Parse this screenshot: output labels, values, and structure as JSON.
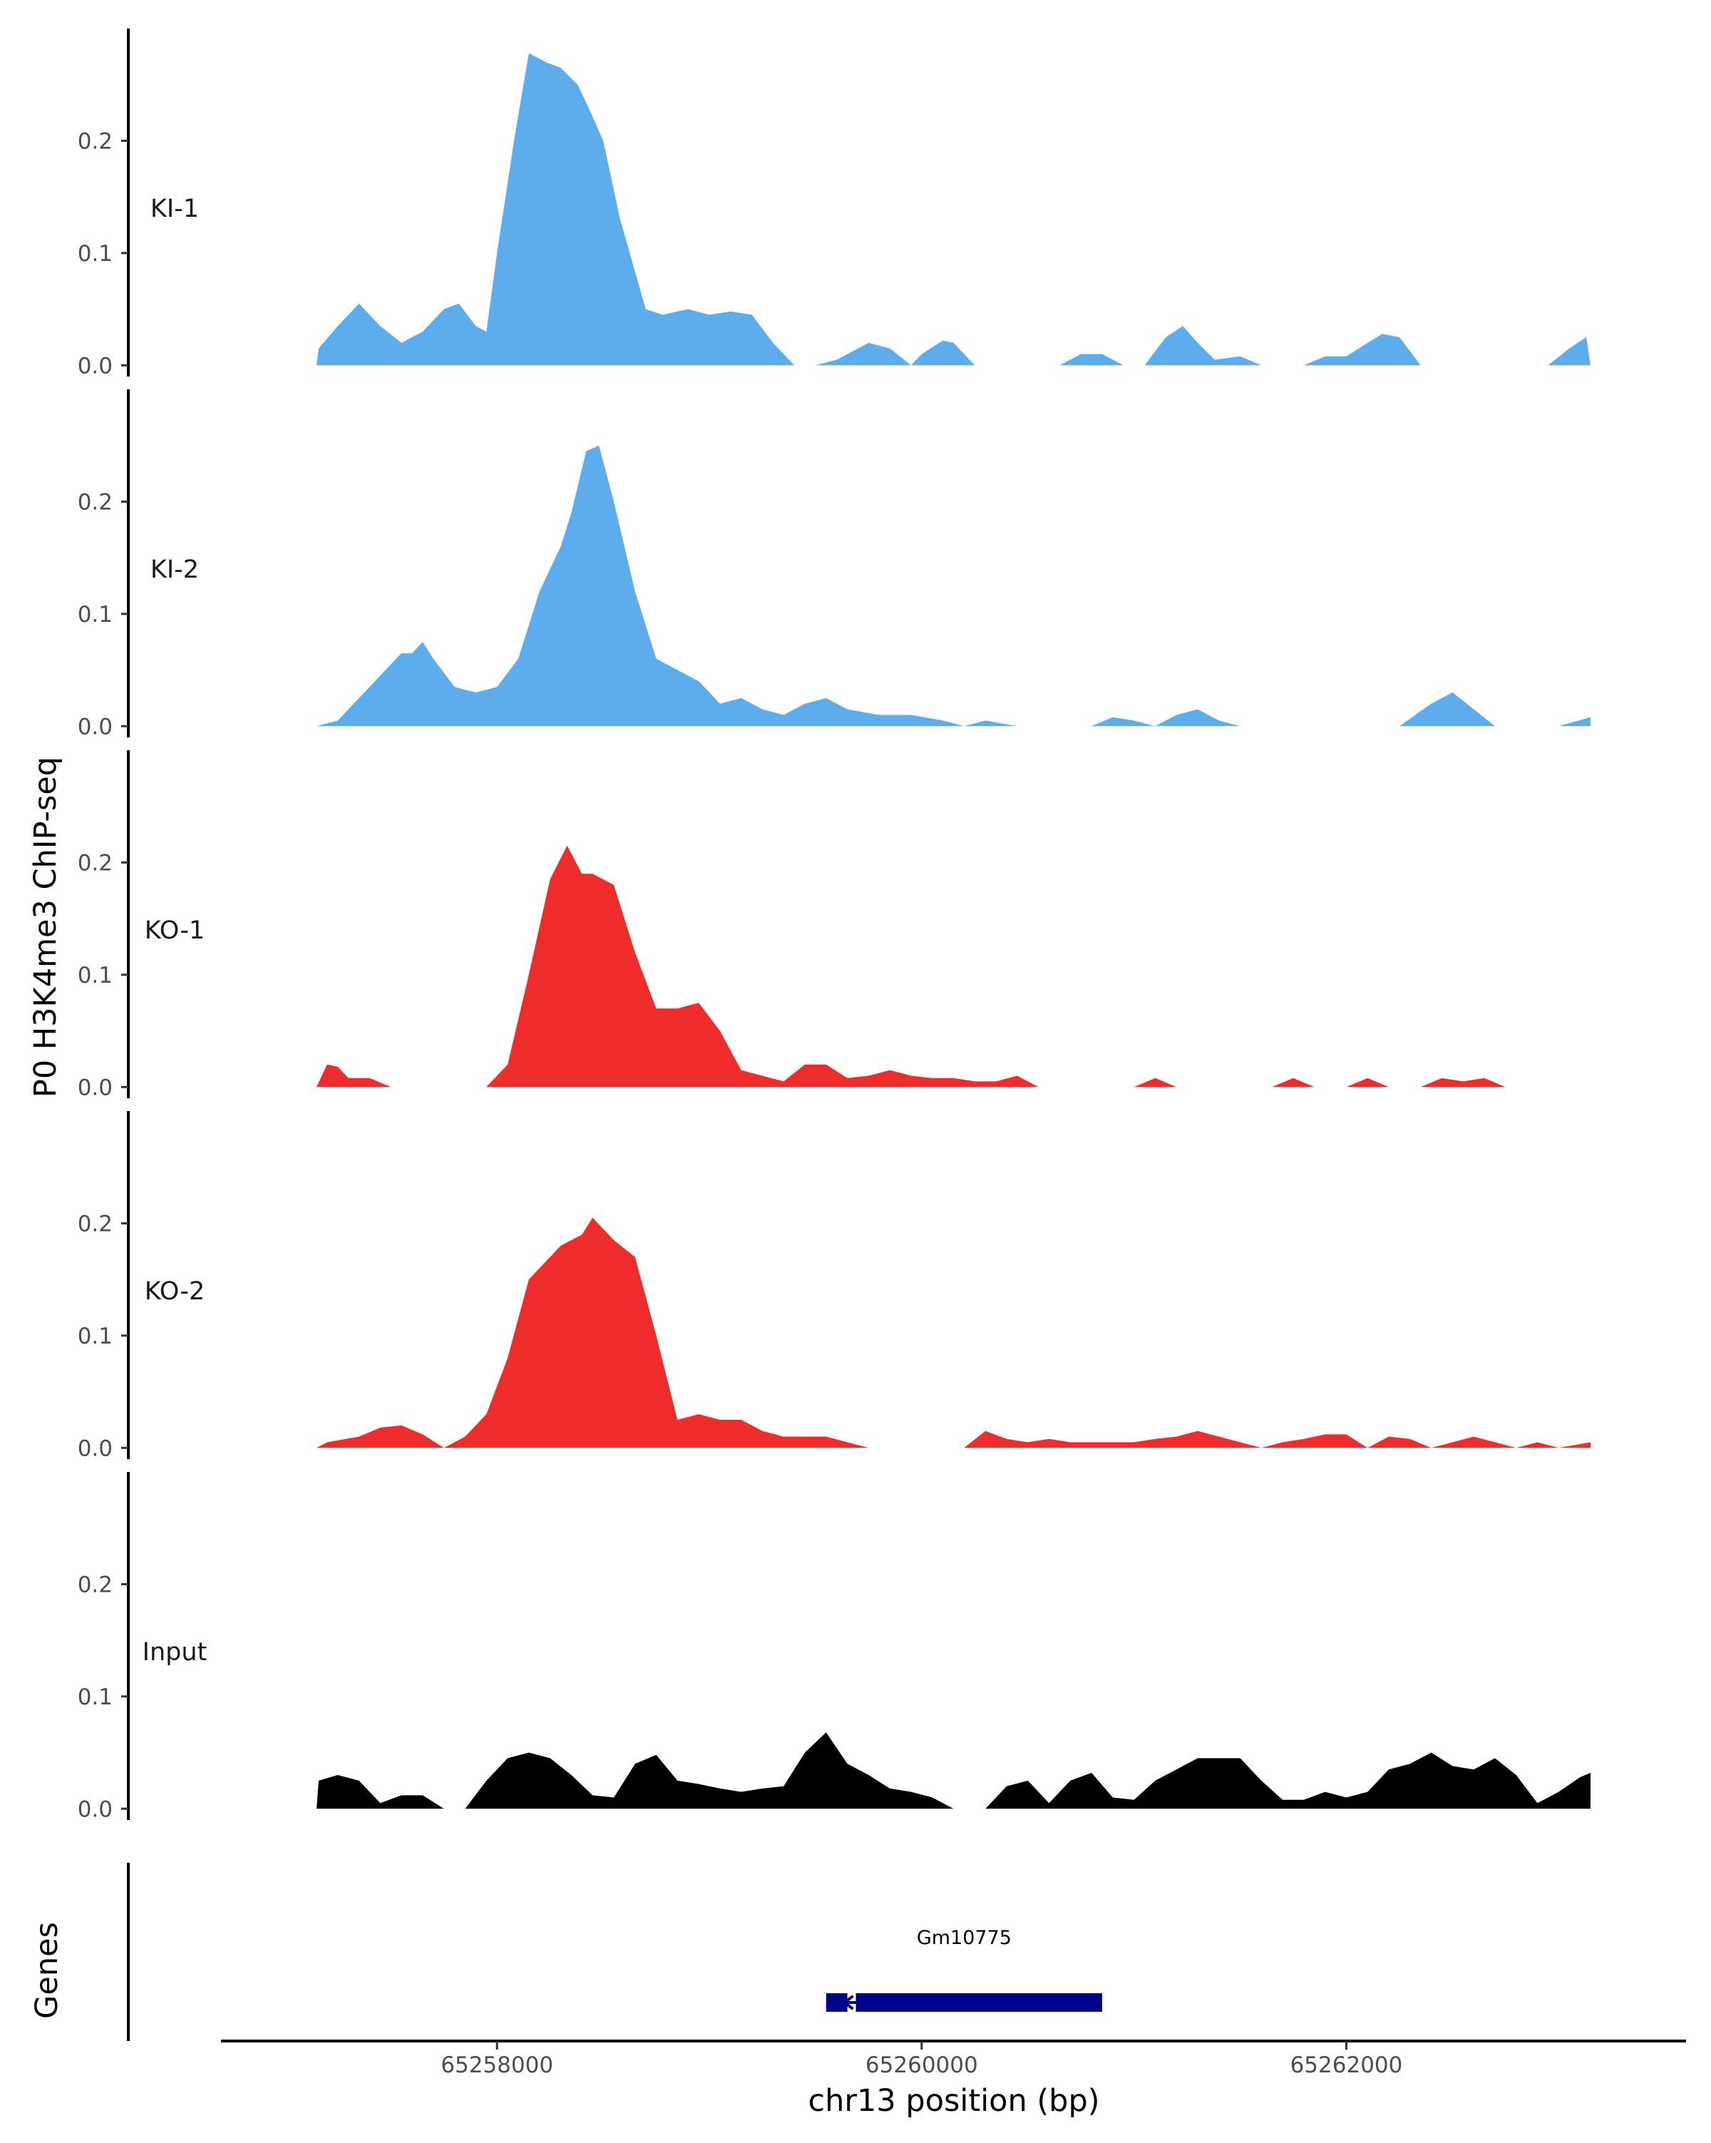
{
  "chart_data": {
    "type": "area",
    "ylabel": "P0 H3K4me3 ChIP-seq",
    "xlabel": "chr13 position (bp)",
    "xlim": [
      65256700,
      65263600
    ],
    "ylim": [
      -0.01,
      0.3
    ],
    "y_ticks": [
      0.0,
      0.1,
      0.2
    ],
    "y_tick_labels": [
      "0.0",
      "0.1",
      "0.2"
    ],
    "x_ticks": [
      65258000,
      65260000,
      65262000
    ],
    "x_tick_labels": [
      "65258000",
      "65260000",
      "65262000"
    ],
    "series": [
      {
        "name": "KI-1",
        "color": "#5DADEC",
        "points": [
          [
            65257150,
            0.0
          ],
          [
            65257160,
            0.015
          ],
          [
            65257250,
            0.035
          ],
          [
            65257350,
            0.055
          ],
          [
            65257450,
            0.035
          ],
          [
            65257550,
            0.02
          ],
          [
            65257650,
            0.03
          ],
          [
            65257750,
            0.05
          ],
          [
            65257820,
            0.055
          ],
          [
            65257900,
            0.035
          ],
          [
            65257950,
            0.03
          ],
          [
            65258000,
            0.1
          ],
          [
            65258080,
            0.2
          ],
          [
            65258150,
            0.278
          ],
          [
            65258230,
            0.27
          ],
          [
            65258300,
            0.265
          ],
          [
            65258380,
            0.25
          ],
          [
            65258430,
            0.23
          ],
          [
            65258500,
            0.2
          ],
          [
            65258580,
            0.13
          ],
          [
            65258700,
            0.05
          ],
          [
            65258780,
            0.045
          ],
          [
            65258900,
            0.05
          ],
          [
            65259000,
            0.045
          ],
          [
            65259100,
            0.048
          ],
          [
            65259200,
            0.045
          ],
          [
            65259300,
            0.02
          ],
          [
            65259400,
            0.0
          ],
          [
            65259500,
            0.0
          ],
          [
            65259600,
            0.005
          ],
          [
            65259750,
            0.02
          ],
          [
            65259850,
            0.015
          ],
          [
            65259950,
            0.0
          ],
          [
            65260000,
            0.01
          ],
          [
            65260100,
            0.022
          ],
          [
            65260150,
            0.02
          ],
          [
            65260250,
            0.0
          ],
          [
            65260650,
            0.0
          ],
          [
            65260750,
            0.01
          ],
          [
            65260850,
            0.01
          ],
          [
            65260950,
            0.0
          ],
          [
            65261050,
            0.0
          ],
          [
            65261150,
            0.025
          ],
          [
            65261230,
            0.035
          ],
          [
            65261300,
            0.02
          ],
          [
            65261380,
            0.005
          ],
          [
            65261500,
            0.008
          ],
          [
            65261600,
            0.0
          ],
          [
            65261800,
            0.0
          ],
          [
            65261900,
            0.008
          ],
          [
            65262000,
            0.008
          ],
          [
            65262100,
            0.02
          ],
          [
            65262170,
            0.028
          ],
          [
            65262250,
            0.025
          ],
          [
            65262350,
            0.0
          ],
          [
            65262950,
            0.0
          ],
          [
            65263050,
            0.015
          ],
          [
            65263130,
            0.025
          ],
          [
            65263150,
            0.0
          ]
        ]
      },
      {
        "name": "KI-2",
        "color": "#5DADEC",
        "points": [
          [
            65257150,
            0.0
          ],
          [
            65257250,
            0.005
          ],
          [
            65257350,
            0.025
          ],
          [
            65257450,
            0.045
          ],
          [
            65257550,
            0.065
          ],
          [
            65257600,
            0.065
          ],
          [
            65257650,
            0.075
          ],
          [
            65257700,
            0.06
          ],
          [
            65257800,
            0.035
          ],
          [
            65257900,
            0.03
          ],
          [
            65258000,
            0.035
          ],
          [
            65258100,
            0.06
          ],
          [
            65258200,
            0.12
          ],
          [
            65258300,
            0.16
          ],
          [
            65258350,
            0.19
          ],
          [
            65258420,
            0.245
          ],
          [
            65258480,
            0.25
          ],
          [
            65258550,
            0.2
          ],
          [
            65258650,
            0.12
          ],
          [
            65258750,
            0.06
          ],
          [
            65258850,
            0.05
          ],
          [
            65258950,
            0.04
          ],
          [
            65259050,
            0.02
          ],
          [
            65259150,
            0.025
          ],
          [
            65259250,
            0.015
          ],
          [
            65259350,
            0.01
          ],
          [
            65259450,
            0.02
          ],
          [
            65259550,
            0.025
          ],
          [
            65259650,
            0.015
          ],
          [
            65259800,
            0.01
          ],
          [
            65259950,
            0.01
          ],
          [
            65260100,
            0.005
          ],
          [
            65260200,
            0.0
          ],
          [
            65260300,
            0.005
          ],
          [
            65260450,
            0.0
          ],
          [
            65260800,
            0.0
          ],
          [
            65260900,
            0.008
          ],
          [
            65261000,
            0.005
          ],
          [
            65261100,
            0.0
          ],
          [
            65261200,
            0.01
          ],
          [
            65261300,
            0.015
          ],
          [
            65261400,
            0.005
          ],
          [
            65261500,
            0.0
          ],
          [
            65262250,
            0.0
          ],
          [
            65262400,
            0.02
          ],
          [
            65262500,
            0.03
          ],
          [
            65262600,
            0.015
          ],
          [
            65262700,
            0.0
          ],
          [
            65263000,
            0.0
          ],
          [
            65263150,
            0.008
          ],
          [
            65263150,
            0.0
          ]
        ]
      },
      {
        "name": "KO-1",
        "color": "#EE2C2C",
        "points": [
          [
            65257150,
            0.0
          ],
          [
            65257200,
            0.02
          ],
          [
            65257250,
            0.018
          ],
          [
            65257300,
            0.008
          ],
          [
            65257400,
            0.008
          ],
          [
            65257500,
            0.0
          ],
          [
            65257950,
            0.0
          ],
          [
            65258050,
            0.02
          ],
          [
            65258150,
            0.1
          ],
          [
            65258250,
            0.185
          ],
          [
            65258330,
            0.215
          ],
          [
            65258400,
            0.19
          ],
          [
            65258450,
            0.19
          ],
          [
            65258550,
            0.18
          ],
          [
            65258650,
            0.12
          ],
          [
            65258750,
            0.07
          ],
          [
            65258850,
            0.07
          ],
          [
            65258950,
            0.075
          ],
          [
            65259050,
            0.05
          ],
          [
            65259150,
            0.015
          ],
          [
            65259250,
            0.01
          ],
          [
            65259350,
            0.005
          ],
          [
            65259450,
            0.02
          ],
          [
            65259550,
            0.02
          ],
          [
            65259650,
            0.008
          ],
          [
            65259750,
            0.01
          ],
          [
            65259850,
            0.015
          ],
          [
            65259950,
            0.01
          ],
          [
            65260050,
            0.008
          ],
          [
            65260150,
            0.008
          ],
          [
            65260250,
            0.005
          ],
          [
            65260350,
            0.005
          ],
          [
            65260450,
            0.01
          ],
          [
            65260550,
            0.0
          ],
          [
            65261000,
            0.0
          ],
          [
            65261100,
            0.008
          ],
          [
            65261200,
            0.0
          ],
          [
            65261650,
            0.0
          ],
          [
            65261750,
            0.008
          ],
          [
            65261850,
            0.0
          ],
          [
            65262000,
            0.0
          ],
          [
            65262100,
            0.008
          ],
          [
            65262200,
            0.0
          ],
          [
            65262350,
            0.0
          ],
          [
            65262450,
            0.008
          ],
          [
            65262550,
            0.005
          ],
          [
            65262650,
            0.008
          ],
          [
            65262750,
            0.0
          ]
        ]
      },
      {
        "name": "KO-2",
        "color": "#EE2C2C",
        "points": [
          [
            65257150,
            0.0
          ],
          [
            65257200,
            0.005
          ],
          [
            65257350,
            0.01
          ],
          [
            65257450,
            0.018
          ],
          [
            65257550,
            0.02
          ],
          [
            65257650,
            0.012
          ],
          [
            65257750,
            0.0
          ],
          [
            65257850,
            0.01
          ],
          [
            65257950,
            0.03
          ],
          [
            65258050,
            0.08
          ],
          [
            65258150,
            0.15
          ],
          [
            65258250,
            0.17
          ],
          [
            65258300,
            0.18
          ],
          [
            65258400,
            0.19
          ],
          [
            65258450,
            0.205
          ],
          [
            65258550,
            0.185
          ],
          [
            65258650,
            0.17
          ],
          [
            65258750,
            0.1
          ],
          [
            65258850,
            0.025
          ],
          [
            65258950,
            0.03
          ],
          [
            65259050,
            0.025
          ],
          [
            65259150,
            0.025
          ],
          [
            65259250,
            0.015
          ],
          [
            65259350,
            0.01
          ],
          [
            65259450,
            0.01
          ],
          [
            65259550,
            0.01
          ],
          [
            65259650,
            0.005
          ],
          [
            65259750,
            0.0
          ],
          [
            65260200,
            0.0
          ],
          [
            65260300,
            0.015
          ],
          [
            65260400,
            0.008
          ],
          [
            65260500,
            0.005
          ],
          [
            65260600,
            0.008
          ],
          [
            65260700,
            0.005
          ],
          [
            65260800,
            0.005
          ],
          [
            65260900,
            0.005
          ],
          [
            65261000,
            0.005
          ],
          [
            65261100,
            0.008
          ],
          [
            65261200,
            0.01
          ],
          [
            65261300,
            0.015
          ],
          [
            65261400,
            0.01
          ],
          [
            65261500,
            0.005
          ],
          [
            65261600,
            0.0
          ],
          [
            65261700,
            0.005
          ],
          [
            65261800,
            0.008
          ],
          [
            65261900,
            0.012
          ],
          [
            65262000,
            0.012
          ],
          [
            65262100,
            0.0
          ],
          [
            65262200,
            0.01
          ],
          [
            65262300,
            0.008
          ],
          [
            65262400,
            0.0
          ],
          [
            65262500,
            0.005
          ],
          [
            65262600,
            0.01
          ],
          [
            65262700,
            0.005
          ],
          [
            65262800,
            0.0
          ],
          [
            65262900,
            0.005
          ],
          [
            65263000,
            0.0
          ],
          [
            65263150,
            0.005
          ],
          [
            65263150,
            0.0
          ]
        ]
      },
      {
        "name": "Input",
        "color": "#000000",
        "points": [
          [
            65257150,
            0.0
          ],
          [
            65257160,
            0.025
          ],
          [
            65257250,
            0.03
          ],
          [
            65257350,
            0.025
          ],
          [
            65257450,
            0.005
          ],
          [
            65257550,
            0.012
          ],
          [
            65257650,
            0.012
          ],
          [
            65257750,
            0.0
          ],
          [
            65257850,
            0.0
          ],
          [
            65257950,
            0.025
          ],
          [
            65258050,
            0.045
          ],
          [
            65258150,
            0.05
          ],
          [
            65258250,
            0.045
          ],
          [
            65258350,
            0.03
          ],
          [
            65258450,
            0.012
          ],
          [
            65258550,
            0.01
          ],
          [
            65258650,
            0.04
          ],
          [
            65258750,
            0.048
          ],
          [
            65258850,
            0.025
          ],
          [
            65258950,
            0.022
          ],
          [
            65259050,
            0.018
          ],
          [
            65259150,
            0.015
          ],
          [
            65259250,
            0.018
          ],
          [
            65259350,
            0.02
          ],
          [
            65259450,
            0.05
          ],
          [
            65259550,
            0.068
          ],
          [
            65259650,
            0.04
          ],
          [
            65259750,
            0.03
          ],
          [
            65259850,
            0.018
          ],
          [
            65259950,
            0.015
          ],
          [
            65260050,
            0.01
          ],
          [
            65260150,
            0.0
          ],
          [
            65260300,
            0.0
          ],
          [
            65260400,
            0.02
          ],
          [
            65260500,
            0.025
          ],
          [
            65260600,
            0.005
          ],
          [
            65260700,
            0.025
          ],
          [
            65260800,
            0.032
          ],
          [
            65260900,
            0.01
          ],
          [
            65261000,
            0.008
          ],
          [
            65261100,
            0.025
          ],
          [
            65261200,
            0.035
          ],
          [
            65261300,
            0.045
          ],
          [
            65261400,
            0.045
          ],
          [
            65261500,
            0.045
          ],
          [
            65261600,
            0.025
          ],
          [
            65261700,
            0.008
          ],
          [
            65261800,
            0.008
          ],
          [
            65261900,
            0.015
          ],
          [
            65262000,
            0.01
          ],
          [
            65262100,
            0.015
          ],
          [
            65262200,
            0.035
          ],
          [
            65262300,
            0.04
          ],
          [
            65262400,
            0.05
          ],
          [
            65262500,
            0.038
          ],
          [
            65262600,
            0.035
          ],
          [
            65262700,
            0.045
          ],
          [
            65262800,
            0.03
          ],
          [
            65262900,
            0.005
          ],
          [
            65263000,
            0.015
          ],
          [
            65263100,
            0.028
          ],
          [
            65263150,
            0.032
          ],
          [
            65263150,
            0.0
          ]
        ]
      }
    ],
    "genes_track": {
      "label": "Genes",
      "gene_name": "Gm10775",
      "strand": "-",
      "start": 65259550,
      "end": 65260850,
      "color": "#00008B",
      "exons": [
        [
          65259550,
          65259650
        ],
        [
          65259690,
          65260850
        ]
      ]
    }
  }
}
